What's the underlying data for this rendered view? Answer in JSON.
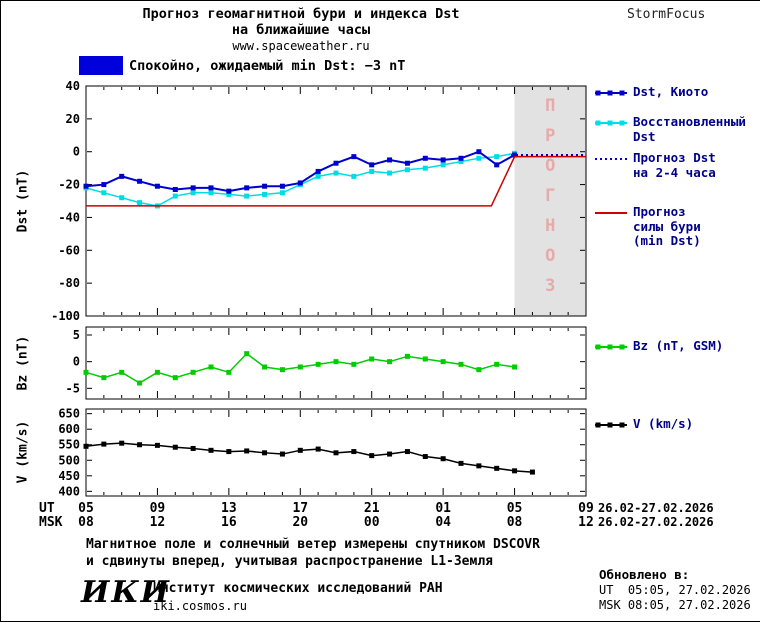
{
  "header": {
    "title_line1": "Прогноз геомагнитной бури и индекса Dst",
    "title_line2": "на ближайшие часы",
    "site": "www.spaceweather.ru",
    "brand": "StormFocus"
  },
  "status": {
    "text": "Спокойно, ожидаемый min Dst: −3 nT",
    "level_color": "#0000dd"
  },
  "xaxis": {
    "ut_label": "UT",
    "msk_label": "MSK",
    "tick_hours": [
      0,
      4,
      8,
      12,
      16,
      20,
      24,
      28
    ],
    "ut_hours": [
      "05",
      "09",
      "13",
      "17",
      "21",
      "01",
      "05",
      "09"
    ],
    "msk_hours": [
      "08",
      "12",
      "16",
      "20",
      "00",
      "04",
      "08",
      "12"
    ],
    "date_range": "26.02-27.02.2026"
  },
  "legend": {
    "main": [
      {
        "label": "Dst, Киото",
        "color": "#0000cd",
        "style": "solid-marker"
      },
      {
        "label": "Восстановленный\nDst",
        "color": "#00dce6",
        "style": "solid-marker"
      },
      {
        "label": "Прогноз Dst\nна 2-4 часа",
        "color": "#0000cd",
        "style": "dotted"
      },
      {
        "label": "Прогноз\nсилы бури\n(min Dst)",
        "color": "#cc0000",
        "style": "solid"
      }
    ],
    "bz": {
      "label": "Bz (nT, GSM)",
      "color": "#00cc00",
      "style": "solid-marker"
    },
    "v": {
      "label": "V (km/s)",
      "color": "#000000",
      "style": "solid-marker"
    }
  },
  "chart_data": [
    {
      "id": "dst",
      "type": "line",
      "ylabel": "Dst (nT)",
      "xlim": [
        0,
        28
      ],
      "ylim": [
        -100,
        40
      ],
      "yticks": [
        40,
        20,
        0,
        -20,
        -40,
        -60,
        -80,
        -100
      ],
      "xtick_hours": [
        0,
        4,
        8,
        12,
        16,
        20,
        24,
        28
      ],
      "band": {
        "from": 24,
        "to": 28,
        "color": "#e2e2e2",
        "letters": [
          "П",
          "Р",
          "О",
          "Г",
          "Н",
          "О",
          "З"
        ],
        "letter_color": "#e8a9a9"
      },
      "series": [
        {
          "name": "Восстановленный Dst",
          "color": "#00dce6",
          "marker": true,
          "width": 1.5,
          "x": [
            0,
            1,
            2,
            3,
            4,
            5,
            6,
            7,
            8,
            9,
            10,
            11,
            12,
            13,
            14,
            15,
            16,
            17,
            18,
            19,
            20,
            21,
            22,
            23,
            24
          ],
          "y": [
            -22,
            -25,
            -28,
            -31,
            -33,
            -27,
            -25,
            -25,
            -26,
            -27,
            -26,
            -25,
            -20,
            -15,
            -13,
            -15,
            -12,
            -13,
            -11,
            -10,
            -8,
            -6,
            -4,
            -3,
            -1
          ]
        },
        {
          "name": "Dst, Киото",
          "color": "#0000cd",
          "marker": true,
          "width": 2,
          "x": [
            0,
            1,
            2,
            3,
            4,
            5,
            6,
            7,
            8,
            9,
            10,
            11,
            12,
            13,
            14,
            15,
            16,
            17,
            18,
            19,
            20,
            21,
            22,
            23,
            24
          ],
          "y": [
            -21,
            -20,
            -15,
            -18,
            -21,
            -23,
            -22,
            -22,
            -24,
            -22,
            -21,
            -21,
            -19,
            -12,
            -7,
            -3,
            -8,
            -5,
            -7,
            -4,
            -5,
            -4,
            0,
            -8,
            -2
          ]
        },
        {
          "name": "Прогноз силы бури (min Dst)",
          "color": "#cc0000",
          "marker": false,
          "width": 1.5,
          "x": [
            0,
            22.7,
            24,
            28
          ],
          "y": [
            -33,
            -33,
            -3,
            -3
          ]
        },
        {
          "name": "Прогноз Dst на 2-4 часа",
          "color": "#0000cd",
          "marker": false,
          "width": 2,
          "dash": "2,3",
          "x": [
            23.8,
            28
          ],
          "y": [
            -2,
            -2
          ]
        }
      ]
    },
    {
      "id": "bz",
      "type": "line",
      "ylabel": "Bz (nT)",
      "xlim": [
        0,
        28
      ],
      "ylim": [
        -7,
        6.5
      ],
      "yticks": [
        5,
        0,
        -5
      ],
      "xtick_hours": [
        0,
        4,
        8,
        12,
        16,
        20,
        24,
        28
      ],
      "series": [
        {
          "name": "Bz (nT, GSM)",
          "color": "#00cc00",
          "marker": true,
          "width": 1.5,
          "x": [
            0,
            1,
            2,
            3,
            4,
            5,
            6,
            7,
            8,
            9,
            10,
            11,
            12,
            13,
            14,
            15,
            16,
            17,
            18,
            19,
            20,
            21,
            22,
            23,
            24
          ],
          "y": [
            -2,
            -3,
            -2,
            -4,
            -2,
            -3,
            -2,
            -1,
            -2,
            1.5,
            -1,
            -1.5,
            -1,
            -0.5,
            0,
            -0.5,
            0.5,
            0,
            1,
            0.5,
            0,
            -0.5,
            -1.5,
            -0.5,
            -1
          ]
        }
      ]
    },
    {
      "id": "v",
      "type": "line",
      "ylabel": "V (km/s)",
      "xlim": [
        0,
        28
      ],
      "ylim": [
        385,
        665
      ],
      "yticks": [
        650,
        600,
        550,
        500,
        450,
        400
      ],
      "xtick_hours": [
        0,
        4,
        8,
        12,
        16,
        20,
        24,
        28
      ],
      "series": [
        {
          "name": "V (km/s)",
          "color": "#000000",
          "marker": true,
          "width": 1.5,
          "x": [
            0,
            1,
            2,
            3,
            4,
            5,
            6,
            7,
            8,
            9,
            10,
            11,
            12,
            13,
            14,
            15,
            16,
            17,
            18,
            19,
            20,
            21,
            22,
            23,
            24,
            25
          ],
          "y": [
            545,
            552,
            555,
            550,
            548,
            542,
            538,
            532,
            528,
            530,
            524,
            520,
            532,
            536,
            524,
            528,
            515,
            520,
            528,
            512,
            505,
            490,
            482,
            474,
            466,
            462
          ]
        }
      ]
    }
  ],
  "footer": {
    "note_line1": "Магнитное поле и солнечный ветер измерены спутником DSCOVR",
    "note_line2": "и сдвинуты вперед, учитывая распространение L1-Земля",
    "logo": "ИКИ",
    "institute": "Институт космических исследований РАН",
    "site": "iki.cosmos.ru"
  },
  "updated": {
    "heading": "Обновлено в:",
    "ut": "UT  05:05, 27.02.2026",
    "msk": "MSK 08:05, 27.02.2026"
  }
}
